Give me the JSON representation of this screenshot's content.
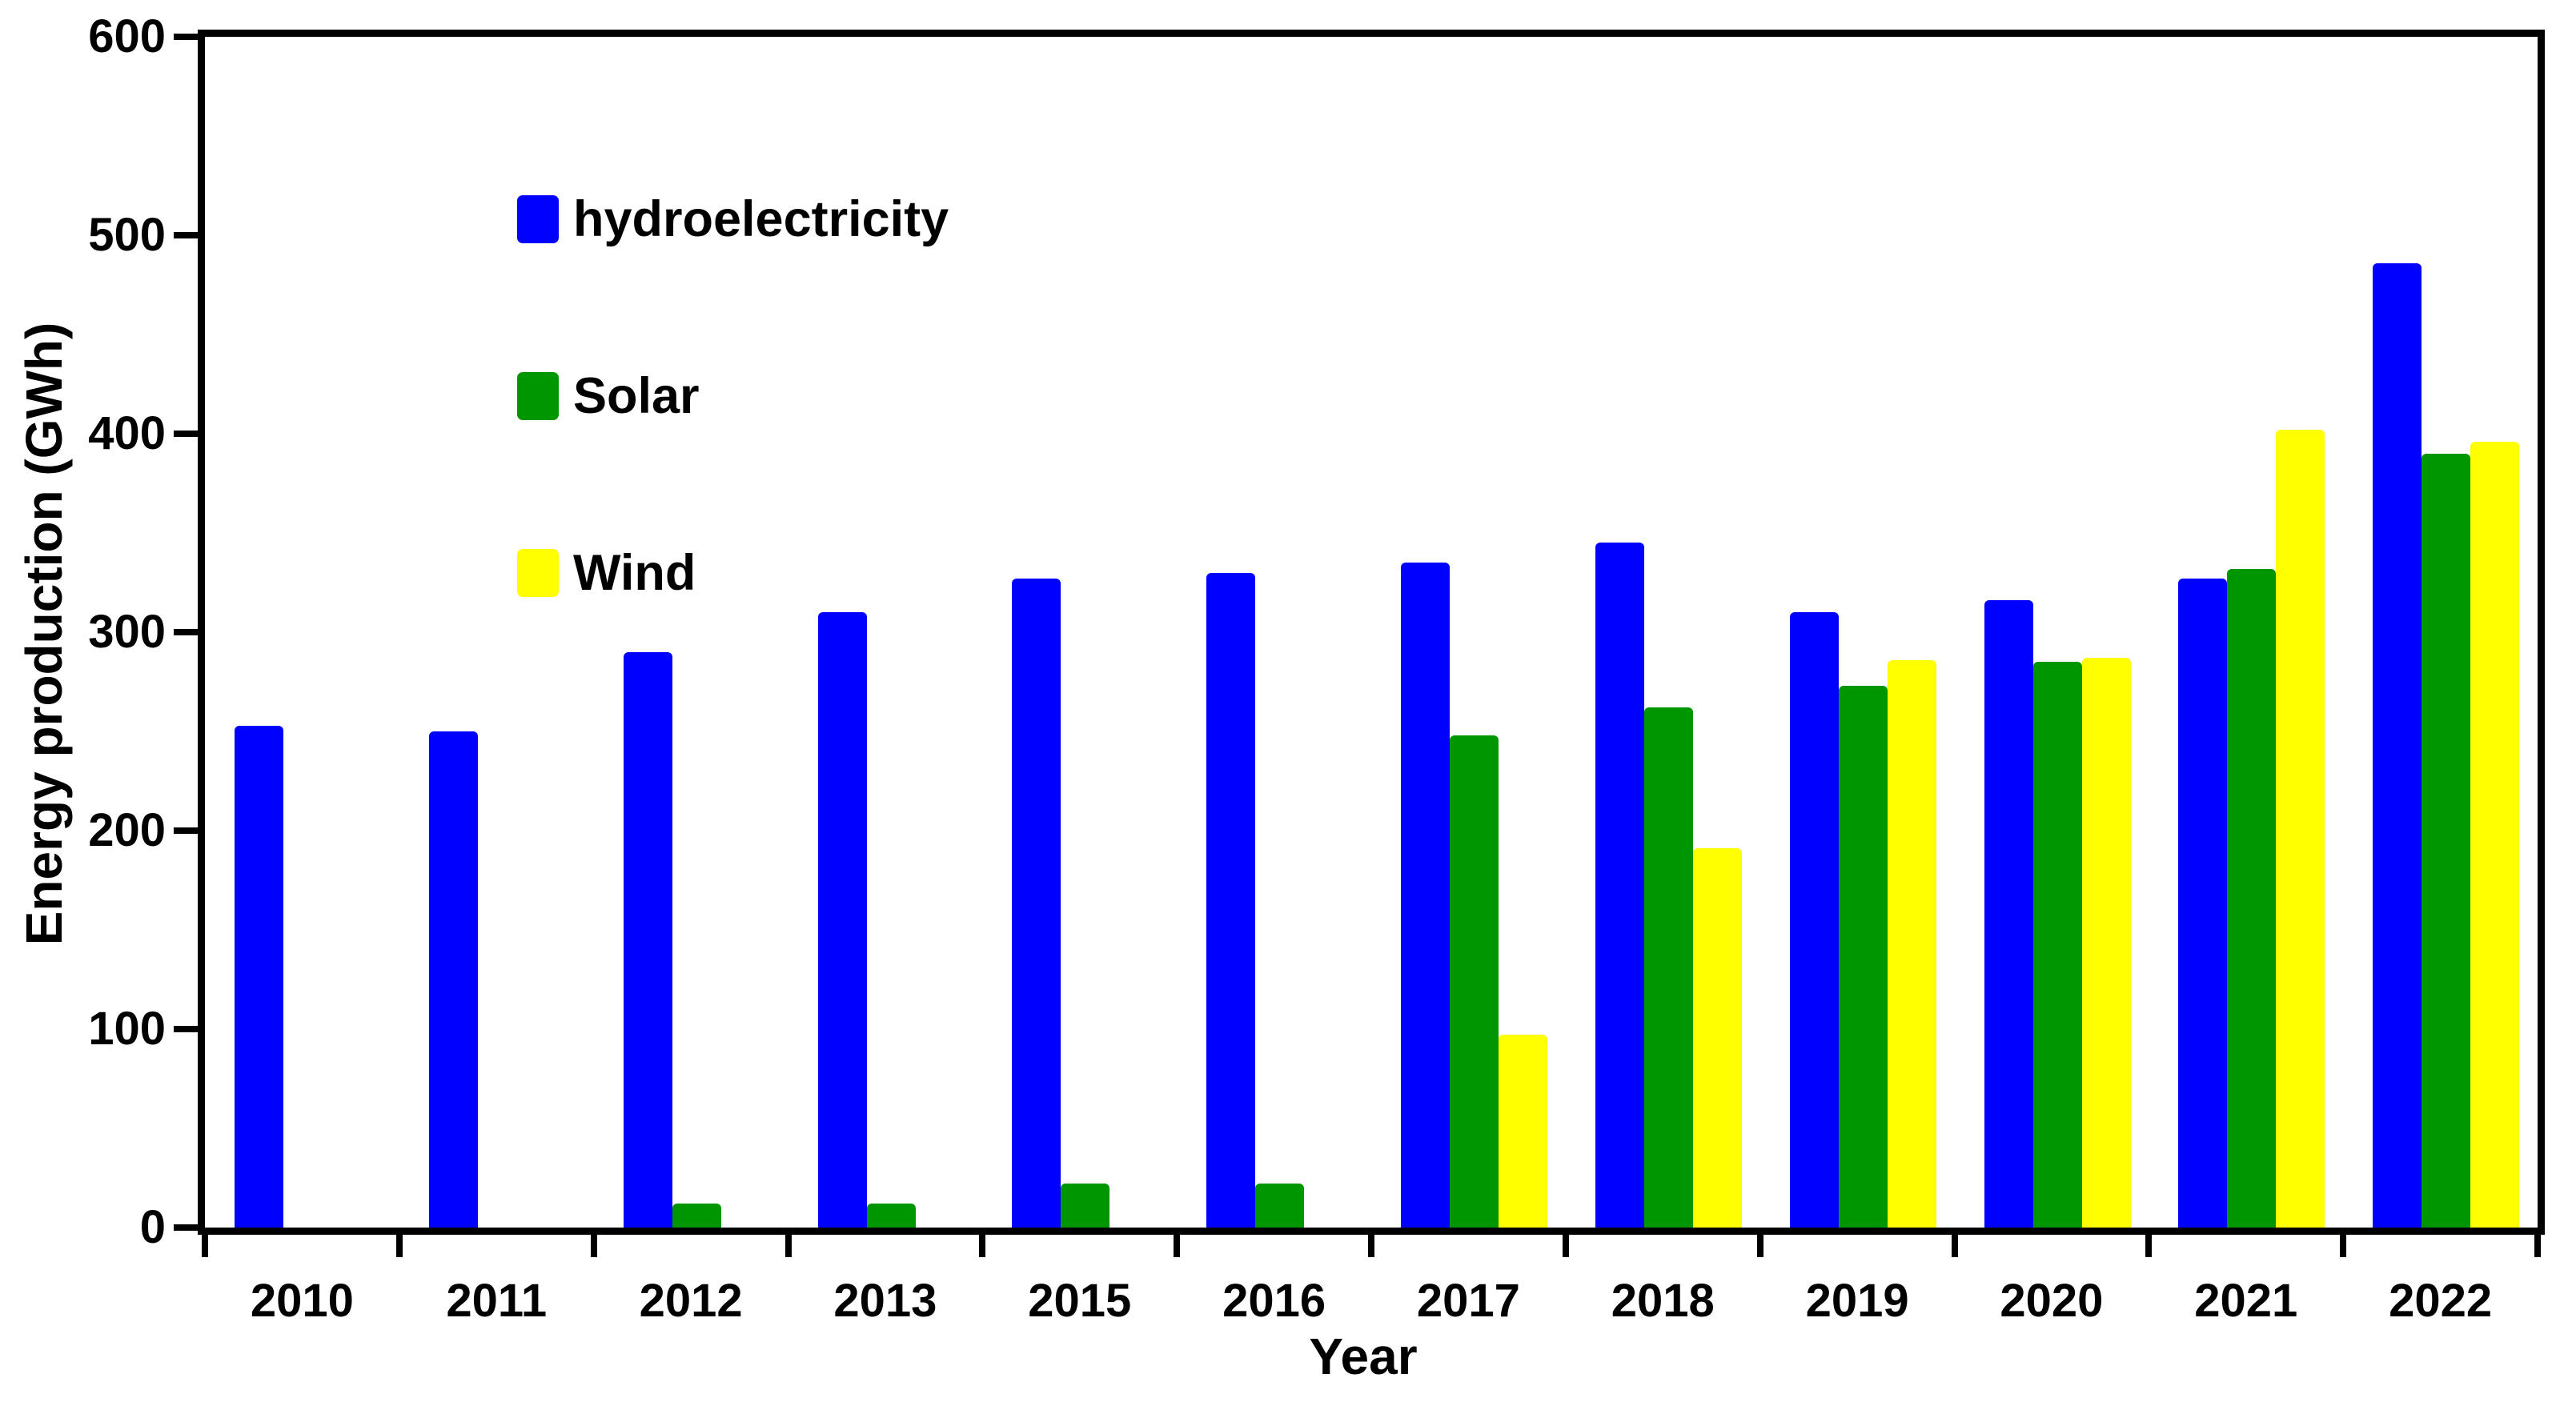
{
  "chart_data": {
    "type": "bar",
    "title": "",
    "xlabel": "Year",
    "ylabel": "Energy production (GWh)",
    "categories": [
      "2010",
      "2011",
      "2012",
      "2013",
      "2015",
      "2016",
      "2017",
      "2018",
      "2019",
      "2020",
      "2021",
      "2022"
    ],
    "series": [
      {
        "name": "hydroelectricity",
        "color": "#0000FF",
        "values": [
          253,
          250,
          290,
          310,
          327,
          330,
          335,
          345,
          310,
          316,
          327,
          486
        ]
      },
      {
        "name": "Solar",
        "color": "#009600",
        "values": [
          null,
          null,
          12,
          12,
          22,
          22,
          248,
          262,
          273,
          285,
          332,
          390
        ]
      },
      {
        "name": "Wind",
        "color": "#FFFF00",
        "values": [
          null,
          null,
          null,
          null,
          null,
          null,
          97,
          191,
          286,
          287,
          402,
          396
        ]
      }
    ],
    "ylim": [
      0,
      600
    ],
    "yticks": [
      0,
      100,
      200,
      300,
      400,
      500,
      600
    ],
    "grid": false,
    "legend_position": "upper-left-inside",
    "plot_border": "full-box",
    "axis_text_color": "#000000"
  }
}
